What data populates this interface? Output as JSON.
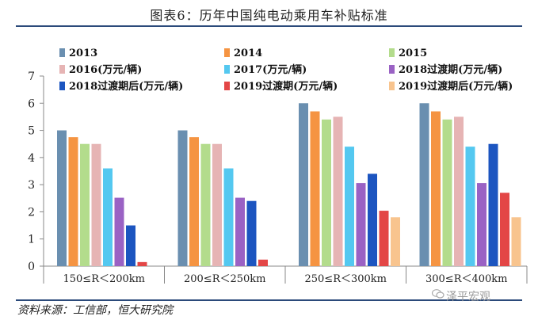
{
  "title": "图表6：历年中国纯电动乘用车补贴标准",
  "source": "资料来源：工信部，恒大研究院",
  "watermark": "泽平宏观",
  "chart_data": {
    "type": "bar",
    "title": "图表6：历年中国纯电动乘用车补贴标准",
    "xlabel": "",
    "ylabel": "",
    "ylim": [
      0,
      7
    ],
    "yticks": [
      "0",
      "1",
      "2",
      "3",
      "4",
      "5",
      "6",
      "7"
    ],
    "grid": false,
    "legend": "top",
    "categories": [
      "150≤R＜200km",
      "200≤R＜250km",
      "250≤R＜300km",
      "300≤R＜400km"
    ],
    "series": [
      {
        "name": "2013",
        "color": "#6a8fb0",
        "values": [
          5,
          5,
          6,
          6
        ]
      },
      {
        "name": "2014",
        "color": "#f59442",
        "values": [
          4.75,
          4.75,
          5.7,
          5.7
        ]
      },
      {
        "name": "2015",
        "color": "#b3dc8c",
        "values": [
          4.5,
          4.5,
          5.4,
          5.4
        ]
      },
      {
        "name": "2016(万元/辆)",
        "color": "#e6b4b4",
        "values": [
          4.5,
          4.5,
          5.5,
          5.5
        ]
      },
      {
        "name": "2017(万元/辆)",
        "color": "#54c8f0",
        "values": [
          3.6,
          3.6,
          4.4,
          4.4
        ]
      },
      {
        "name": "2018过渡期(万元/辆)",
        "color": "#9a62c4",
        "values": [
          2.52,
          2.52,
          3.06,
          3.06
        ]
      },
      {
        "name": "2018过渡期后(万元/辆)",
        "color": "#1c55c0",
        "values": [
          1.5,
          2.4,
          3.4,
          4.5
        ]
      },
      {
        "name": "2019过渡期(万元/辆)",
        "color": "#e34646",
        "values": [
          0.15,
          0.24,
          2.04,
          2.7
        ]
      },
      {
        "name": "2019过渡期后(万元/辆)",
        "color": "#f8c48e",
        "values": [
          0,
          0,
          1.8,
          1.8
        ]
      }
    ]
  }
}
